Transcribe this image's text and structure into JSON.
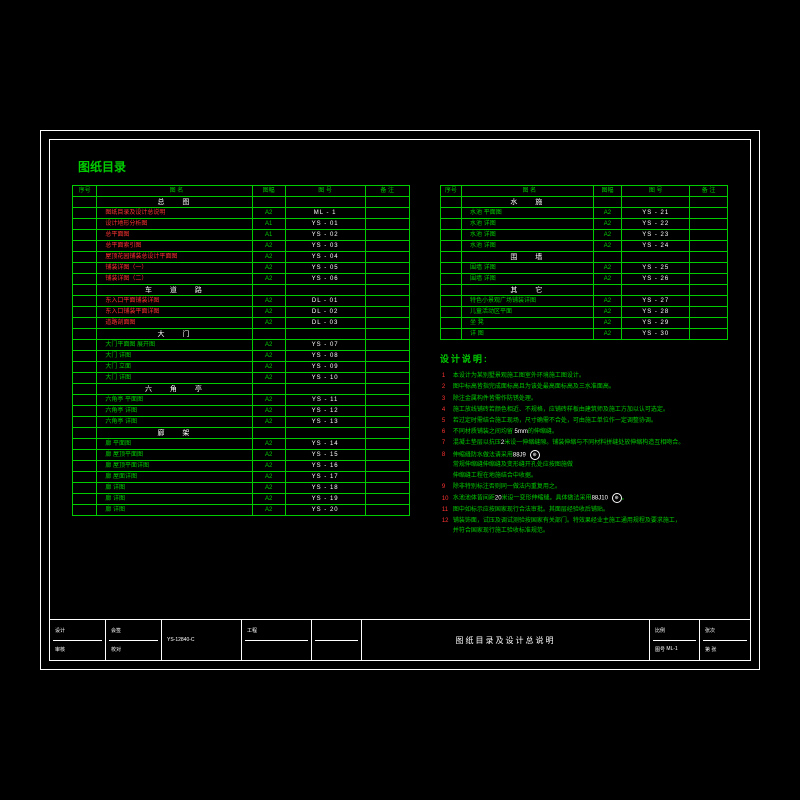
{
  "page_title": "图纸目录",
  "headers": {
    "seq": "序号",
    "name": "图 名",
    "fmt": "图幅",
    "num": "图 号",
    "note": "备 注"
  },
  "sections1": [
    {
      "section": "总 图",
      "rows": [
        {
          "name": "图纸目录及设计总说明",
          "fmt": "A2",
          "num": "ML - 1",
          "red": true
        },
        {
          "name": "设计地形分析图",
          "fmt": "A1",
          "num": "YS - 01",
          "red": true
        },
        {
          "name": "总平面图",
          "fmt": "A1",
          "num": "YS - 02",
          "red": true
        },
        {
          "name": "总平面索引图",
          "fmt": "A2",
          "num": "YS - 03",
          "red": true
        },
        {
          "name": "屋顶花园铺装总设计平面图",
          "fmt": "A2",
          "num": "YS - 04",
          "red": true
        },
        {
          "name": "铺装详图（一）",
          "fmt": "A2",
          "num": "YS - 05",
          "red": true
        },
        {
          "name": "铺装详图（二）",
          "fmt": "A2",
          "num": "YS - 06",
          "red": true
        }
      ]
    },
    {
      "section": "车 道 路",
      "rows": [
        {
          "name": "东入口平面铺装详图",
          "fmt": "A2",
          "num": "DL - 01",
          "red": true
        },
        {
          "name": "东入口铺装平面详图",
          "fmt": "A2",
          "num": "DL - 02",
          "red": true
        },
        {
          "name": "道路剖面图",
          "fmt": "A2",
          "num": "DL - 03",
          "red": true
        }
      ]
    },
    {
      "section": "大 门",
      "rows": [
        {
          "name": "大门平面图 展开图",
          "fmt": "A2",
          "num": "YS - 07"
        },
        {
          "name": "大门 详图",
          "fmt": "A2",
          "num": "YS - 08"
        },
        {
          "name": "大门 立面",
          "fmt": "A2",
          "num": "YS - 09"
        },
        {
          "name": "大门 详图",
          "fmt": "A2",
          "num": "YS - 10"
        }
      ]
    },
    {
      "section": "六 角 亭",
      "rows": [
        {
          "name": "六角亭 平面图",
          "fmt": "A2",
          "num": "YS - 11"
        },
        {
          "name": "六角亭 详图",
          "fmt": "A2",
          "num": "YS - 12"
        },
        {
          "name": "六角亭 详图",
          "fmt": "A2",
          "num": "YS - 13"
        }
      ]
    },
    {
      "section": "廊 架",
      "rows": [
        {
          "name": "廊 平面图",
          "fmt": "A2",
          "num": "YS - 14"
        },
        {
          "name": "廊 屋顶平面图",
          "fmt": "A2",
          "num": "YS - 15"
        },
        {
          "name": "廊 屋顶平面详图",
          "fmt": "A2",
          "num": "YS - 16"
        },
        {
          "name": "廊 屋面详图",
          "fmt": "A2",
          "num": "YS - 17"
        },
        {
          "name": "廊 详图",
          "fmt": "A2",
          "num": "YS - 18"
        },
        {
          "name": "廊 详图",
          "fmt": "A2",
          "num": "YS - 19"
        },
        {
          "name": "廊 详图",
          "fmt": "A2",
          "num": "YS - 20"
        }
      ]
    }
  ],
  "sections2": [
    {
      "section": "水 施",
      "rows": [
        {
          "name": "水池 平面图",
          "fmt": "A2",
          "num": "YS - 21"
        },
        {
          "name": "水池 详图",
          "fmt": "A2",
          "num": "YS - 22"
        },
        {
          "name": "水池 详图",
          "fmt": "A2",
          "num": "YS - 23"
        },
        {
          "name": "水池 详图",
          "fmt": "A2",
          "num": "YS - 24"
        }
      ]
    },
    {
      "section": "围 墙",
      "rows": [
        {
          "name": "围墙 详图",
          "fmt": "A2",
          "num": "YS - 25"
        },
        {
          "name": "围墙 详图",
          "fmt": "A2",
          "num": "YS - 26"
        }
      ]
    },
    {
      "section": "其 它",
      "rows": [
        {
          "name": "特色小景观广场铺装详图",
          "fmt": "A2",
          "num": "YS - 27"
        },
        {
          "name": "儿童活动区平面",
          "fmt": "A2",
          "num": "YS - 28"
        },
        {
          "name": "坐 凳",
          "fmt": "A2",
          "num": "YS - 29"
        },
        {
          "name": "详 图",
          "fmt": "A2",
          "num": "YS - 30"
        }
      ]
    }
  ],
  "notes_title": "设计说明:",
  "notes": [
    "本设计为某别墅景观施工图室外环境施工图设计。",
    "图中标高皆指完成面标高且为该处最高面标高及三水准面高。",
    "除注金属构件皆需作防锈处理。",
    "施工放线铺砖若颜色相近、不规格，应铺砖样板由建筑师及施工方加以认可选定。",
    "若过定时需结合施工现场，尺寸确需不合处，可由施工单位作一定调整协调。",
    "不同材质铺装之间均留 5mm的伸缩缝。",
    "混凝土垫层以抗压2米设一伸缩缝隙。铺装伸缩与不同材料拼缝处放伸缩构造互相吻合。",
    "伸缩缝防水做法请采用88J9    常规伸缩缝伸缩缝及变形缝开孔处应按图施做 伸缩缝工程在地施结合中收据。",
    "除非特别标注否则同一做法内重复用之。",
    "水池池体皆间距20米设一变形伸缩缝。具体做法采用88J10   。",
    "图中如标示应按国家现行合法审批。其面层经验收后铺贴。",
    "铺装饰面，试压及调试测验按国家有关部门。特效果经业主施工通用规程及要求施工，并符合国家现行施工验收标准规范。"
  ],
  "titleblock": {
    "cell1a": "设计",
    "cell1b": "审核",
    "cell2a": "会签",
    "cell2b": "校对",
    "cell3": "YS-12840-C",
    "project": "工程",
    "main": "图纸目录及设计总说明",
    "scale_lbl": "比例",
    "scale": "",
    "num_lbl": "图号",
    "num": "ML-1",
    "sheet_lbl": "张次",
    "sheet": "第 张"
  },
  "colors": {
    "bg": "#000000",
    "line": "#ffffff",
    "text": "#00cc00",
    "accent": "#ff3333"
  }
}
